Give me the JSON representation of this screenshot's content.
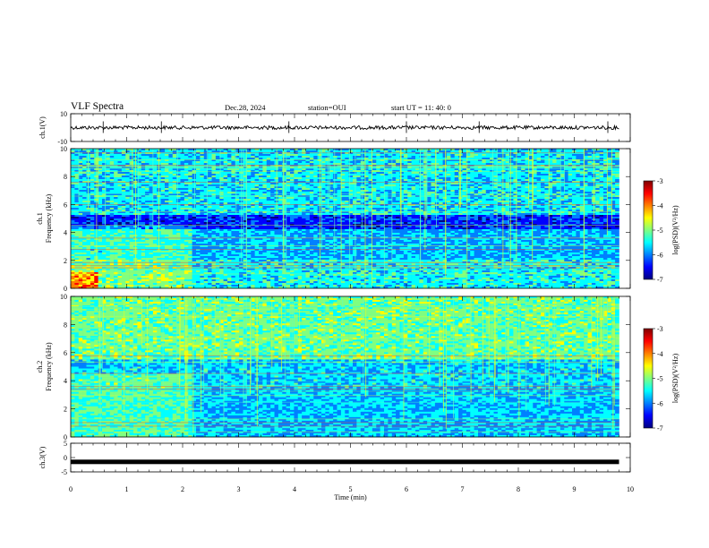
{
  "header": {
    "title": "VLF Spectra",
    "date": "Dec.28, 2024",
    "station": "station=OUI",
    "start_ut": "start  UT =   11: 40: 0"
  },
  "chart_data": [
    {
      "type": "line",
      "panel": "ch1-waveform",
      "ylabel": "ch.1(V)",
      "ylim": [
        -10,
        10
      ],
      "yticks": [
        "10",
        "-10"
      ],
      "xlim": [
        0,
        10
      ],
      "series": [
        {
          "values": [
            0,
            0,
            0,
            0,
            0,
            0,
            0,
            0,
            0,
            0
          ]
        }
      ],
      "x": [
        0,
        1,
        2,
        3,
        4,
        5,
        6,
        7,
        8,
        9.8
      ]
    },
    {
      "type": "heatmap",
      "panel": "ch1-spectrogram",
      "ylabel": "ch.1",
      "ylabel2": "Frequency (kHz)",
      "ylim": [
        0,
        10
      ],
      "yticks": [
        "0",
        "2",
        "4",
        "6",
        "8",
        "10"
      ],
      "xlim": [
        0,
        9.8
      ],
      "colorbar_label": "log(PSD)(V²/Hz)",
      "colorbar_ticks": [
        "-3",
        "-4",
        "-5",
        "-6",
        "-7"
      ],
      "colorbar_range": [
        -7,
        -3
      ],
      "colormap": [
        "#00007f",
        "#0000ff",
        "#0080ff",
        "#00ffff",
        "#80ff80",
        "#ffff00",
        "#ff8000",
        "#ff0000",
        "#7f0000"
      ]
    },
    {
      "type": "heatmap",
      "panel": "ch2-spectrogram",
      "ylabel": "ch.2",
      "ylabel2": "Frequency (kHz)",
      "ylim": [
        0,
        10
      ],
      "yticks": [
        "0",
        "2",
        "4",
        "6",
        "8",
        "10"
      ],
      "xlim": [
        0,
        9.8
      ],
      "colorbar_label": "log(PSD)(V²/Hz)",
      "colorbar_ticks": [
        "-3",
        "-4",
        "-5",
        "-6",
        "-7"
      ],
      "colorbar_range": [
        -7,
        -3
      ],
      "colormap": [
        "#00007f",
        "#0000ff",
        "#0080ff",
        "#00ffff",
        "#80ff80",
        "#ffff00",
        "#ff8000",
        "#ff0000",
        "#7f0000"
      ]
    },
    {
      "type": "line",
      "panel": "ch3-waveform",
      "ylabel": "ch.3(V)",
      "ylim": [
        -5,
        5
      ],
      "yticks": [
        "5",
        "0",
        "-5"
      ],
      "xlim": [
        0,
        10
      ],
      "series": [
        {
          "values": [
            -1.5,
            -1.5,
            -1.5,
            -1.5,
            -1.5,
            -1.5,
            -1.5,
            -1.5,
            -1.5,
            -1.5
          ]
        }
      ],
      "x": [
        0,
        1,
        2,
        3,
        4,
        5,
        6,
        7,
        8,
        9.8
      ]
    }
  ],
  "xaxis": {
    "xlabel": "Time  (min)",
    "xlim": [
      0,
      10
    ],
    "ticks": [
      "0",
      "1",
      "2",
      "3",
      "4",
      "5",
      "6",
      "7",
      "8",
      "9",
      "10"
    ]
  }
}
